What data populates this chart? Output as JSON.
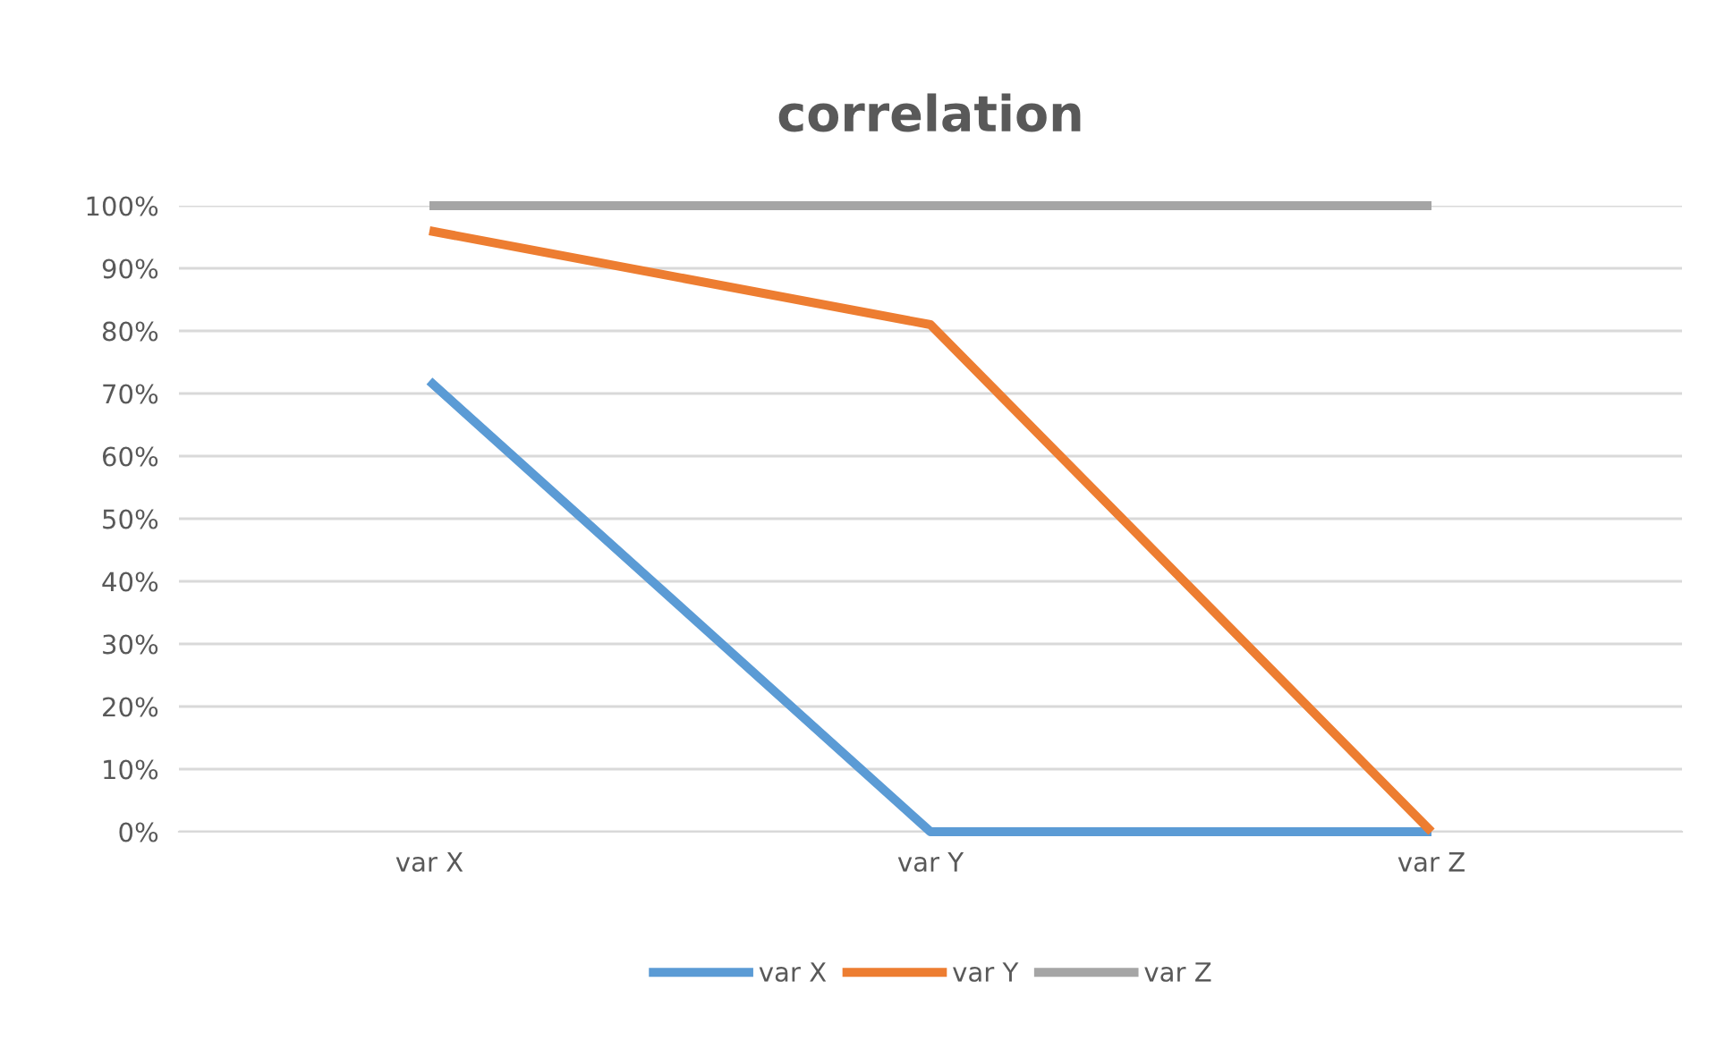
{
  "chart_data": {
    "type": "line",
    "title": "correlation",
    "categories": [
      "var X",
      "var Y",
      "var Z"
    ],
    "series": [
      {
        "name": "var X",
        "color": "#5b9bd5",
        "values": [
          72,
          0,
          0
        ]
      },
      {
        "name": "var Y",
        "color": "#ed7d31",
        "values": [
          96,
          81,
          0
        ]
      },
      {
        "name": "var Z",
        "color": "#a5a5a5",
        "values": [
          100,
          100,
          100
        ]
      }
    ],
    "ylim": [
      0,
      100
    ],
    "yticks": [
      {
        "value": 0,
        "label": "0%"
      },
      {
        "value": 10,
        "label": "10%"
      },
      {
        "value": 20,
        "label": "20%"
      },
      {
        "value": 30,
        "label": "30%"
      },
      {
        "value": 40,
        "label": "40%"
      },
      {
        "value": 50,
        "label": "50%"
      },
      {
        "value": 60,
        "label": "60%"
      },
      {
        "value": 70,
        "label": "70%"
      },
      {
        "value": 80,
        "label": "80%"
      },
      {
        "value": 90,
        "label": "90%"
      },
      {
        "value": 100,
        "label": "100%"
      }
    ],
    "grid": "y",
    "legend": "bottom",
    "marker": "none",
    "line_style": "solid"
  }
}
